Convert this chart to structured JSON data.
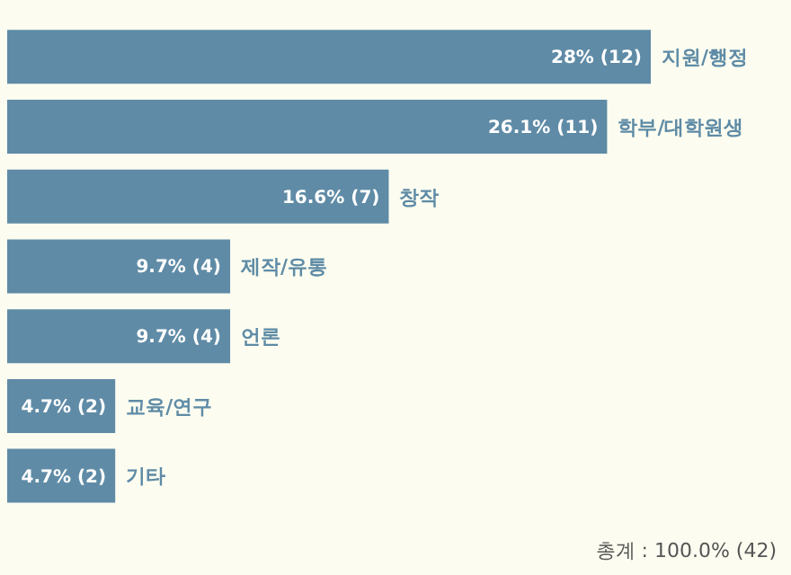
{
  "chart_data": {
    "type": "bar",
    "orientation": "horizontal",
    "relative": false,
    "categories": [
      "지원/행정",
      "학부/대학원생",
      "창작",
      "제작/유통",
      "언론",
      "교육/연구",
      "기타"
    ],
    "values": [
      28,
      26.1,
      16.6,
      9.7,
      9.7,
      4.7,
      4.7
    ],
    "value_labels": [
      "28% (12)",
      "26.1% (11)",
      "16.6% (7)",
      "9.7% (4)",
      "9.7% (4)",
      "4.7% (2)",
      "4.7% (2)"
    ],
    "color": "#5f8ba6",
    "annotations": [
      "총계 : 100.0% (42)"
    ]
  }
}
